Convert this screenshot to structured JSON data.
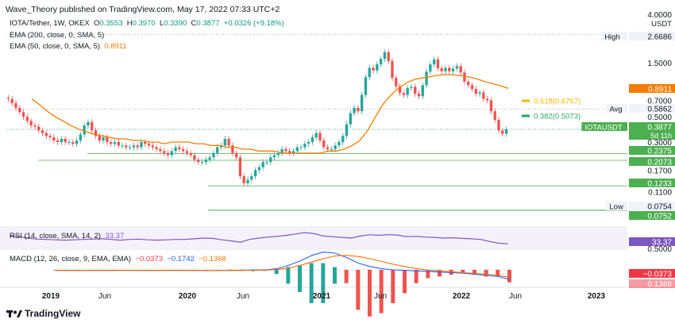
{
  "header": {
    "publisher_line": "Wave_Theory published on TradingView.com, May 17, 2022 07:33 UTC+2"
  },
  "legend": {
    "symbol": "IOTA/Tether, 1W, OKEX",
    "o_label": "O",
    "o": "0.3553",
    "h_label": "H",
    "h": "0.3970",
    "l_label": "L",
    "l": "0.3390",
    "c_label": "C",
    "c": "0.3877",
    "change": "+0.0326 (+9.18%)",
    "ema200": "EMA (200, close, 0, SMA, 5)",
    "ema50": "EMA (50, close, 0, SMA, 5)",
    "ema50_value": "0.8911"
  },
  "rsi_legend": {
    "label": "RSI (14, close, SMA, 14, 2)",
    "value": "33.37"
  },
  "macd_legend": {
    "label": "MACD (12, 26, close, 9, EMA, EMA)",
    "v1": "−0.0373",
    "v2": "−0.1742",
    "v3": "−0.1368"
  },
  "price_axis": {
    "currency": "USDT",
    "ticks": [
      "4.0000",
      "1.5000",
      "0.7000",
      "0.5000",
      "0.3000",
      "0.1700",
      "0.1100"
    ],
    "tick_values": [
      4.0,
      1.5,
      0.7,
      0.5,
      0.3,
      0.17,
      0.11
    ],
    "bottom_ticks": [
      "0.5000",
      "0.1368"
    ],
    "labels": [
      {
        "tag": "High",
        "value": "2.6686",
        "style": "plain"
      },
      {
        "tag": "",
        "value": "0.8911",
        "style": "orange"
      },
      {
        "tag": "Avg",
        "value": "0.5862",
        "style": "plain"
      },
      {
        "tag": "IOTAUSDT",
        "value": "0.3877",
        "sub": "5d 11h",
        "style": "green"
      },
      {
        "tag": "",
        "value": "0.2375",
        "style": "green"
      },
      {
        "tag": "",
        "value": "0.2073",
        "style": "green"
      },
      {
        "tag": "",
        "value": "0.1233",
        "style": "green"
      },
      {
        "tag": "Low",
        "value": "0.0754",
        "style": "plain"
      },
      {
        "tag": "",
        "value": "0.0752",
        "style": "green"
      },
      {
        "tag": "",
        "value": "33.37",
        "style": "purple"
      },
      {
        "tag": "",
        "value": "−0.0373",
        "style": "red"
      }
    ]
  },
  "time_axis": [
    "2019",
    "Jun",
    "2020",
    "Jun",
    "2021",
    "Jun",
    "2022",
    "Jun",
    "2023"
  ],
  "fib": [
    {
      "label": "0.618(0.6757)",
      "color": "#f5b800"
    },
    {
      "label": "0.382(0.5073)",
      "color": "#22ab57"
    }
  ],
  "footer": {
    "brand": "TradingView"
  },
  "colors": {
    "up": "#26a69a",
    "down": "#ef5350",
    "ema": "#f57c00",
    "support": "#4caf50",
    "rsi": "#7e57c2",
    "macd": "#2962ff",
    "signal": "#ff6d00"
  },
  "chart_data": {
    "type": "candlestick",
    "scale": "log",
    "timeframe": "1W",
    "x": [
      "2018-12",
      "2019-01",
      "2019-06",
      "2020-01",
      "2020-03",
      "2020-06",
      "2021-01",
      "2021-05",
      "2021-06",
      "2021-09",
      "2022-01",
      "2022-05",
      "2022-06",
      "2023-01"
    ],
    "y_range": [
      0.065,
      5.0
    ],
    "ohlc_summary": {
      "open": 0.3553,
      "high": 0.397,
      "low": 0.339,
      "close": 0.3877
    },
    "candles_close": [
      0.72,
      0.66,
      0.6,
      0.55,
      0.5,
      0.46,
      0.42,
      0.41,
      0.38,
      0.36,
      0.34,
      0.33,
      0.31,
      0.3,
      0.32,
      0.3,
      0.3,
      0.29,
      0.31,
      0.35,
      0.42,
      0.45,
      0.38,
      0.34,
      0.31,
      0.33,
      0.3,
      0.29,
      0.3,
      0.28,
      0.28,
      0.27,
      0.27,
      0.28,
      0.27,
      0.3,
      0.29,
      0.28,
      0.27,
      0.26,
      0.25,
      0.24,
      0.23,
      0.25,
      0.27,
      0.26,
      0.25,
      0.24,
      0.23,
      0.21,
      0.2,
      0.2,
      0.21,
      0.22,
      0.24,
      0.27,
      0.28,
      0.32,
      0.28,
      0.24,
      0.22,
      0.15,
      0.13,
      0.14,
      0.15,
      0.17,
      0.18,
      0.2,
      0.2,
      0.22,
      0.23,
      0.24,
      0.26,
      0.25,
      0.24,
      0.25,
      0.27,
      0.27,
      0.29,
      0.3,
      0.33,
      0.36,
      0.31,
      0.27,
      0.26,
      0.26,
      0.28,
      0.3,
      0.34,
      0.43,
      0.54,
      0.6,
      0.56,
      0.78,
      1.12,
      1.35,
      1.28,
      1.45,
      1.62,
      1.85,
      1.55,
      1.1,
      0.93,
      0.81,
      0.78,
      0.9,
      0.92,
      0.8,
      0.76,
      0.95,
      1.25,
      1.45,
      1.6,
      1.34,
      1.26,
      1.35,
      1.26,
      1.33,
      1.4,
      1.23,
      1.02,
      0.95,
      0.88,
      0.8,
      0.82,
      0.72,
      0.7,
      0.56,
      0.47,
      0.38,
      0.3549,
      0.3877
    ],
    "ema50": [
      0.72,
      0.64,
      0.56,
      0.5,
      0.46,
      0.42,
      0.39,
      0.37,
      0.35,
      0.34,
      0.33,
      0.32,
      0.32,
      0.31,
      0.31,
      0.3,
      0.3,
      0.29,
      0.3,
      0.3,
      0.3,
      0.29,
      0.29,
      0.28,
      0.28,
      0.27,
      0.27,
      0.26,
      0.26,
      0.25,
      0.25,
      0.25,
      0.24,
      0.24,
      0.24,
      0.24,
      0.24,
      0.24,
      0.25,
      0.25,
      0.26,
      0.28,
      0.31,
      0.38,
      0.5,
      0.65,
      0.78,
      0.9,
      1.0,
      1.07,
      1.1,
      1.13,
      1.16,
      1.18,
      1.17,
      1.15,
      1.12,
      1.08,
      1.02,
      0.98,
      0.94,
      0.89
    ],
    "levels": [
      {
        "name": "High",
        "value": 2.6686
      },
      {
        "name": "EMA50",
        "value": 0.8911
      },
      {
        "name": "fib 0.618",
        "value": 0.6757
      },
      {
        "name": "Avg",
        "value": 0.5862
      },
      {
        "name": "fib 0.382",
        "value": 0.5073
      },
      {
        "name": "Close",
        "value": 0.3877
      },
      {
        "name": "Support",
        "value": 0.2375
      },
      {
        "name": "Support",
        "value": 0.2073
      },
      {
        "name": "Support",
        "value": 0.1233
      },
      {
        "name": "Low",
        "value": 0.0754
      },
      {
        "name": "Support",
        "value": 0.0752
      }
    ],
    "rsi": [
      56,
      54,
      50,
      47,
      46,
      45,
      44,
      45,
      46,
      47,
      48,
      46,
      44,
      46,
      47,
      45,
      44,
      45,
      46,
      46,
      48,
      50,
      49,
      45,
      42,
      38,
      46,
      50,
      53,
      55,
      58,
      62,
      66,
      63,
      56,
      54,
      52,
      50,
      56,
      60,
      58,
      60,
      59,
      54,
      55,
      53,
      52,
      50,
      51,
      49,
      48,
      46,
      40,
      35,
      33.37
    ],
    "macd": [
      -0.01,
      -0.012,
      -0.013,
      -0.012,
      -0.011,
      -0.01,
      -0.01,
      -0.011,
      -0.012,
      -0.011,
      -0.01,
      -0.01,
      -0.012,
      -0.015,
      -0.013,
      -0.01,
      -0.006,
      -0.002,
      0.0,
      0.02,
      0.08,
      0.16,
      0.26,
      0.32,
      0.3,
      0.22,
      0.12,
      0.06,
      0.02,
      0.0,
      -0.01,
      -0.02,
      -0.03,
      -0.04,
      -0.05,
      -0.06,
      -0.08,
      -0.1,
      -0.12,
      -0.1742
    ],
    "macd_signal": [
      -0.011,
      -0.012,
      -0.012,
      -0.012,
      -0.011,
      -0.011,
      -0.01,
      -0.011,
      -0.011,
      -0.011,
      -0.011,
      -0.011,
      -0.012,
      -0.013,
      -0.013,
      -0.012,
      -0.01,
      -0.007,
      -0.004,
      0.005,
      0.03,
      0.08,
      0.14,
      0.2,
      0.25,
      0.26,
      0.24,
      0.2,
      0.15,
      0.1,
      0.06,
      0.02,
      -0.005,
      -0.02,
      -0.035,
      -0.05,
      -0.065,
      -0.08,
      -0.1,
      -0.1368
    ]
  }
}
